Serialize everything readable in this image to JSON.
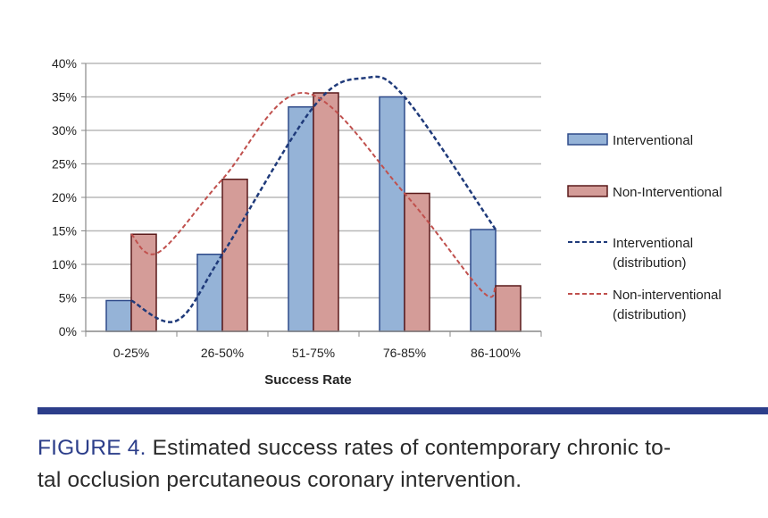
{
  "chart_data": {
    "type": "bar",
    "title": "",
    "xlabel": "Success Rate",
    "ylabel": "",
    "categories": [
      "0-25%",
      "26-50%",
      "51-75%",
      "76-85%",
      "86-100%"
    ],
    "ylim": [
      0,
      40
    ],
    "yticks": [
      "0%",
      "5%",
      "10%",
      "15%",
      "20%",
      "25%",
      "30%",
      "35%",
      "40%"
    ],
    "grid": true,
    "legend_position": "right",
    "series": [
      {
        "name": "Interventional",
        "values": [
          4.6,
          11.5,
          33.5,
          35.0,
          15.2
        ],
        "color": "#95b3d7",
        "edge": "#2f4b8a"
      },
      {
        "name": "Non-Interventional",
        "values": [
          14.5,
          22.7,
          35.6,
          20.6,
          6.8
        ],
        "color": "#d49c98",
        "edge": "#5a1a1a"
      }
    ],
    "lines": [
      {
        "name": "Interventional (distribution)",
        "legend_lines": [
          "Interventional",
          "(distribution)"
        ],
        "style": "dashed",
        "color": "#1f3a7a",
        "points": [
          [
            0,
            4.6
          ],
          [
            0.5,
            1.6
          ],
          [
            1,
            11.5
          ],
          [
            2,
            33.5
          ],
          [
            2.55,
            37.8
          ],
          [
            3,
            35.0
          ],
          [
            4,
            15.2
          ]
        ]
      },
      {
        "name": "Non-interventional (distribution)",
        "legend_lines": [
          "Non-interventional",
          "(distribution)"
        ],
        "style": "dashed",
        "color": "#c0504d",
        "points": [
          [
            0,
            14.5
          ],
          [
            0.3,
            11.8
          ],
          [
            1,
            22.7
          ],
          [
            1.9,
            35.6
          ],
          [
            3,
            20.6
          ],
          [
            3.85,
            6.0
          ],
          [
            4,
            6.8
          ]
        ]
      }
    ]
  },
  "caption": {
    "label": "FIGURE 4.",
    "line1": " Estimated success rates of contemporary chronic to-",
    "line2": "tal occlusion percutaneous coronary intervention."
  }
}
